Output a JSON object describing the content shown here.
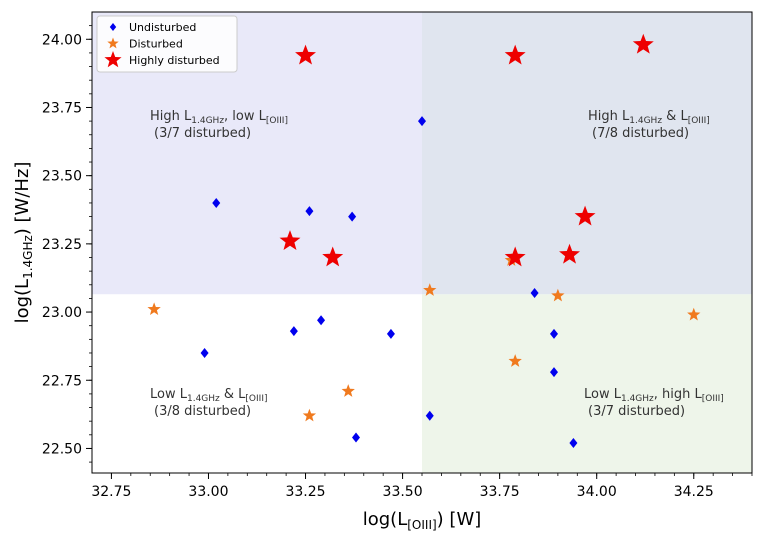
{
  "chart_data": {
    "type": "scatter",
    "xlabel": {
      "main": "log(L",
      "sub": "[OIII]",
      "tail": ") [W]"
    },
    "ylabel": {
      "main": "log(L",
      "sub": "1.4GHz",
      "tail": ") [W/Hz]"
    },
    "xlim": [
      32.7,
      34.4
    ],
    "ylim": [
      22.41,
      24.1
    ],
    "xticks": [
      "32.75",
      "33.00",
      "33.25",
      "33.50",
      "33.75",
      "34.00",
      "34.25"
    ],
    "yticks": [
      "22.50",
      "22.75",
      "23.00",
      "23.25",
      "23.50",
      "23.75",
      "24.00"
    ],
    "split_x": 33.55,
    "split_y": 23.065,
    "quadrant_colors": {
      "top_left": "#e9e9f9",
      "top_right": "#e0e5ef",
      "bottom_left": "#ffffff",
      "bottom_right": "#eef5ea"
    },
    "legend": {
      "location": "top-left",
      "entries": [
        {
          "key": "undisturbed",
          "label": "Undisturbed",
          "marker": "diamond",
          "color": "#0000ee"
        },
        {
          "key": "disturbed",
          "label": "Disturbed",
          "marker": "star",
          "color": "#f07a1e"
        },
        {
          "key": "highly_disturbed",
          "label": "Highly disturbed",
          "marker": "star",
          "color": "#ee0000"
        }
      ]
    },
    "series": [
      {
        "name": "Undisturbed",
        "marker": "diamond",
        "color": "#0000ee",
        "points": [
          [
            33.02,
            23.4
          ],
          [
            33.26,
            23.37
          ],
          [
            33.37,
            23.35
          ],
          [
            33.55,
            23.7
          ],
          [
            32.99,
            22.85
          ],
          [
            33.22,
            22.93
          ],
          [
            33.29,
            22.97
          ],
          [
            33.47,
            22.92
          ],
          [
            33.38,
            22.54
          ],
          [
            33.57,
            22.62
          ],
          [
            33.84,
            23.07
          ],
          [
            33.89,
            22.92
          ],
          [
            33.89,
            22.78
          ],
          [
            33.94,
            22.52
          ]
        ]
      },
      {
        "name": "Disturbed",
        "marker": "star",
        "color": "#f07a1e",
        "points": [
          [
            32.86,
            23.01
          ],
          [
            33.26,
            22.62
          ],
          [
            33.36,
            22.71
          ],
          [
            33.57,
            23.08
          ],
          [
            33.78,
            23.19
          ],
          [
            33.79,
            22.82
          ],
          [
            33.9,
            23.06
          ],
          [
            34.25,
            22.99
          ]
        ]
      },
      {
        "name": "Highly disturbed",
        "marker": "star",
        "color": "#ee0000",
        "points": [
          [
            33.25,
            23.94
          ],
          [
            33.79,
            23.94
          ],
          [
            34.12,
            23.98
          ],
          [
            33.21,
            23.26
          ],
          [
            33.32,
            23.2
          ],
          [
            33.79,
            23.2
          ],
          [
            33.93,
            23.21
          ],
          [
            33.97,
            23.35
          ]
        ]
      }
    ],
    "annotations": [
      {
        "key": "tl",
        "parts": [
          {
            "t": "High L",
            "sub": false
          },
          {
            "t": "1.4GHz",
            "sub": true
          },
          {
            "t": ", low L",
            "sub": false
          },
          {
            "t": "[OIII]",
            "sub": true
          }
        ],
        "line2": "(3/7 disturbed)"
      },
      {
        "key": "tr",
        "parts": [
          {
            "t": "High L",
            "sub": false
          },
          {
            "t": "1.4GHz",
            "sub": true
          },
          {
            "t": " & L",
            "sub": false
          },
          {
            "t": "[OIII]",
            "sub": true
          }
        ],
        "line2": "(7/8 disturbed)"
      },
      {
        "key": "bl",
        "parts": [
          {
            "t": "Low L",
            "sub": false
          },
          {
            "t": "1.4GHz",
            "sub": true
          },
          {
            "t": " & L",
            "sub": false
          },
          {
            "t": "[OIII]",
            "sub": true
          }
        ],
        "line2": "(3/8 disturbed)"
      },
      {
        "key": "br",
        "parts": [
          {
            "t": "Low L",
            "sub": false
          },
          {
            "t": "1.4GHz",
            "sub": true
          },
          {
            "t": ", high L",
            "sub": false
          },
          {
            "t": "[OIII]",
            "sub": true
          }
        ],
        "line2": "(3/7 disturbed)"
      }
    ]
  }
}
